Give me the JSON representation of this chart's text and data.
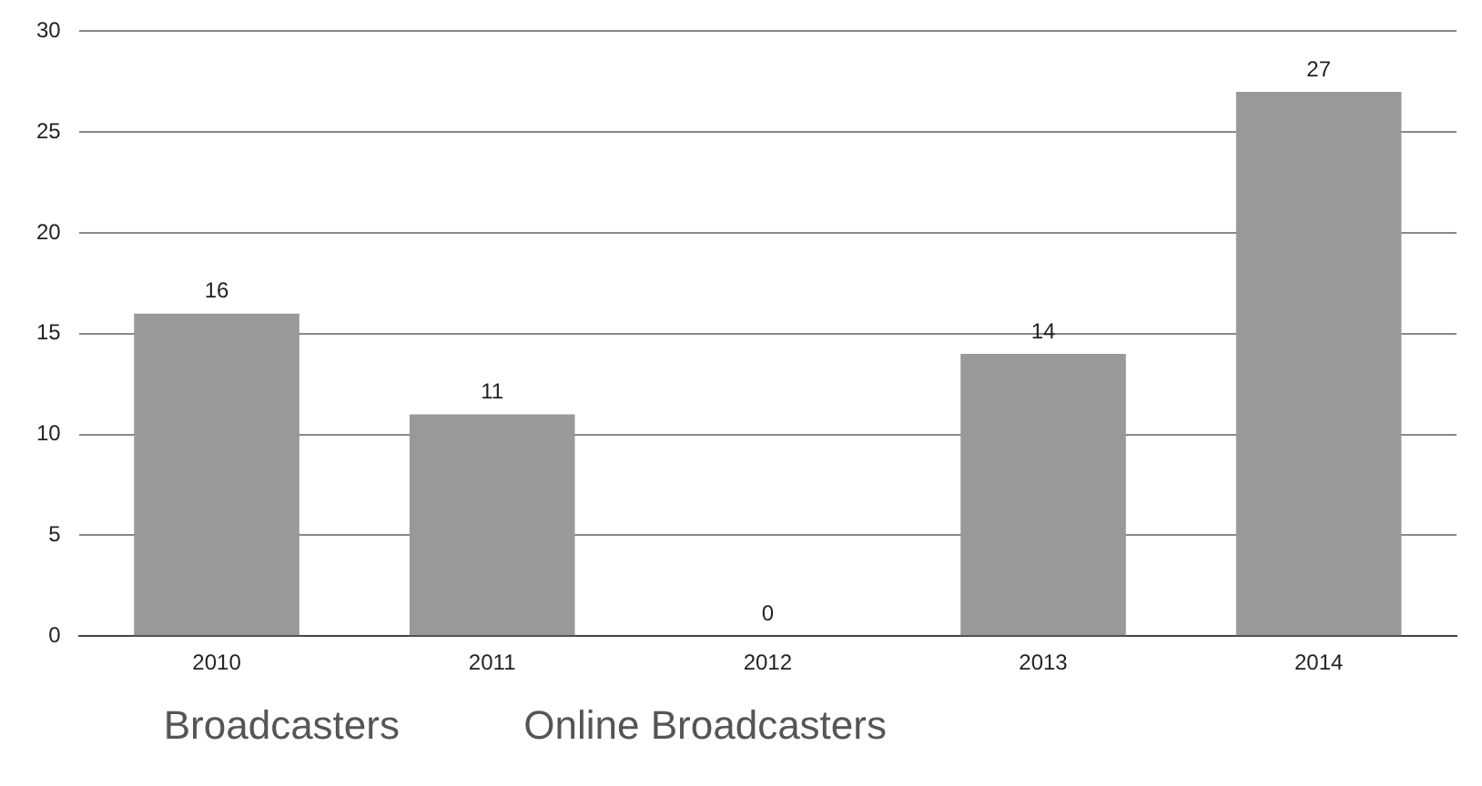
{
  "chart_data": {
    "type": "bar",
    "categories": [
      "2010",
      "2011",
      "2012",
      "2013",
      "2014"
    ],
    "values": [
      16,
      11,
      0,
      14,
      27
    ],
    "color": "#999999",
    "ylim": [
      0,
      30
    ],
    "yticks": [
      0,
      5,
      10,
      15,
      20,
      25,
      30
    ],
    "grid": "y",
    "data_labels": true,
    "legend": false,
    "annotations": [
      "Broadcasters",
      "Online Broadcasters"
    ]
  }
}
